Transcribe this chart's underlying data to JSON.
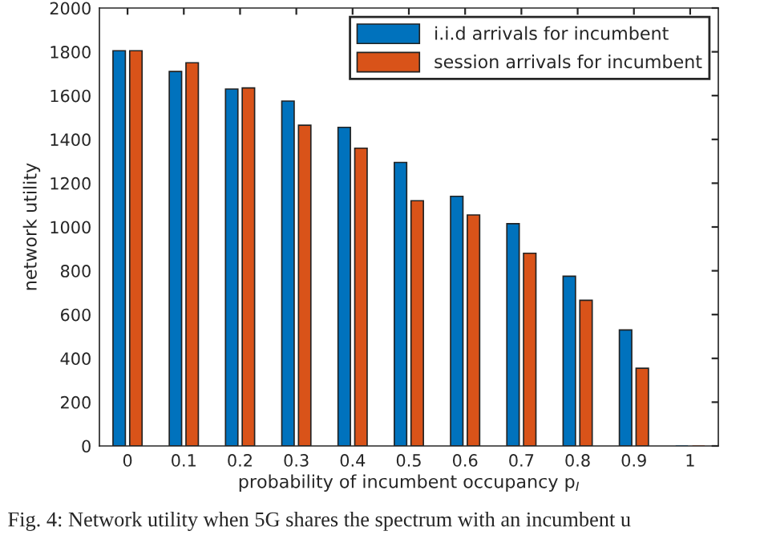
{
  "chart_data": {
    "type": "bar",
    "categories": [
      "0",
      "0.1",
      "0.2",
      "0.3",
      "0.4",
      "0.5",
      "0.6",
      "0.7",
      "0.8",
      "0.9",
      "1"
    ],
    "series": [
      {
        "name": "i.i.d arrivals for incumbent",
        "color": "#0072bd",
        "values": [
          1805,
          1710,
          1630,
          1575,
          1455,
          1295,
          1140,
          1015,
          775,
          530,
          0
        ]
      },
      {
        "name": "session arrivals for incumbent",
        "color": "#d95319",
        "values": [
          1805,
          1750,
          1635,
          1465,
          1360,
          1120,
          1055,
          880,
          665,
          355,
          0
        ]
      }
    ],
    "xlabel": "probability of incumbent occupancy p$_{I}$",
    "ylabel": "network utility",
    "ylim": [
      0,
      2000
    ],
    "yticks": [
      0,
      200,
      400,
      600,
      800,
      1000,
      1200,
      1400,
      1600,
      1800,
      2000
    ],
    "grid": false,
    "legend": "top right",
    "annotations": [
      "Fig. 4: Network utility when 5G shares the spectrum with an incumbent u"
    ]
  }
}
